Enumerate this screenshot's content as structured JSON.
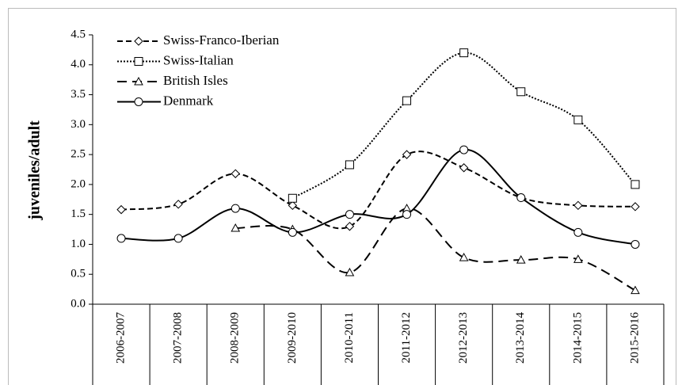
{
  "chart_data": {
    "type": "line",
    "ylabel": "juveniles/adult",
    "categories": [
      "2006-2007",
      "2007-2008",
      "2008-2009",
      "2009-2010",
      "2010-2011",
      "2011-2012",
      "2012-2013",
      "2013-2014",
      "2014-2015",
      "2015-2016"
    ],
    "series": [
      {
        "name": "Swiss-Franco-Iberian",
        "color": "#000000",
        "dash": "dashed",
        "marker": "diamond",
        "values": [
          1.58,
          1.67,
          2.18,
          1.65,
          1.3,
          2.5,
          2.28,
          1.78,
          1.65,
          1.63
        ]
      },
      {
        "name": "Swiss-Italian",
        "color": "#000000",
        "dash": "dotted",
        "marker": "square",
        "values": [
          null,
          null,
          null,
          1.77,
          2.33,
          3.4,
          4.2,
          3.55,
          3.08,
          2.0
        ]
      },
      {
        "name": "British Isles",
        "color": "#000000",
        "dash": "long-dashed",
        "marker": "triangle",
        "values": [
          null,
          null,
          1.27,
          1.25,
          0.53,
          1.6,
          0.78,
          0.74,
          0.75,
          0.23
        ]
      },
      {
        "name": "Denmark",
        "color": "#000000",
        "dash": "solid",
        "marker": "circle",
        "values": [
          1.1,
          1.1,
          1.6,
          1.2,
          1.5,
          1.5,
          2.58,
          1.78,
          1.2,
          1.0
        ]
      }
    ],
    "ylim": [
      0,
      4.5
    ],
    "yticks": [
      {
        "value": 0,
        "label": "0.0"
      },
      {
        "value": 0.5,
        "label": "0.5"
      },
      {
        "value": 1,
        "label": "1.0"
      },
      {
        "value": 1.5,
        "label": "1.5"
      },
      {
        "value": 2,
        "label": "2.0"
      },
      {
        "value": 2.5,
        "label": "2.5"
      },
      {
        "value": 3,
        "label": "3.0"
      },
      {
        "value": 3.5,
        "label": "3.5"
      },
      {
        "value": 4,
        "label": "4.0"
      },
      {
        "value": 4.5,
        "label": "4.5"
      }
    ],
    "grid": false,
    "legend": "upper left"
  }
}
